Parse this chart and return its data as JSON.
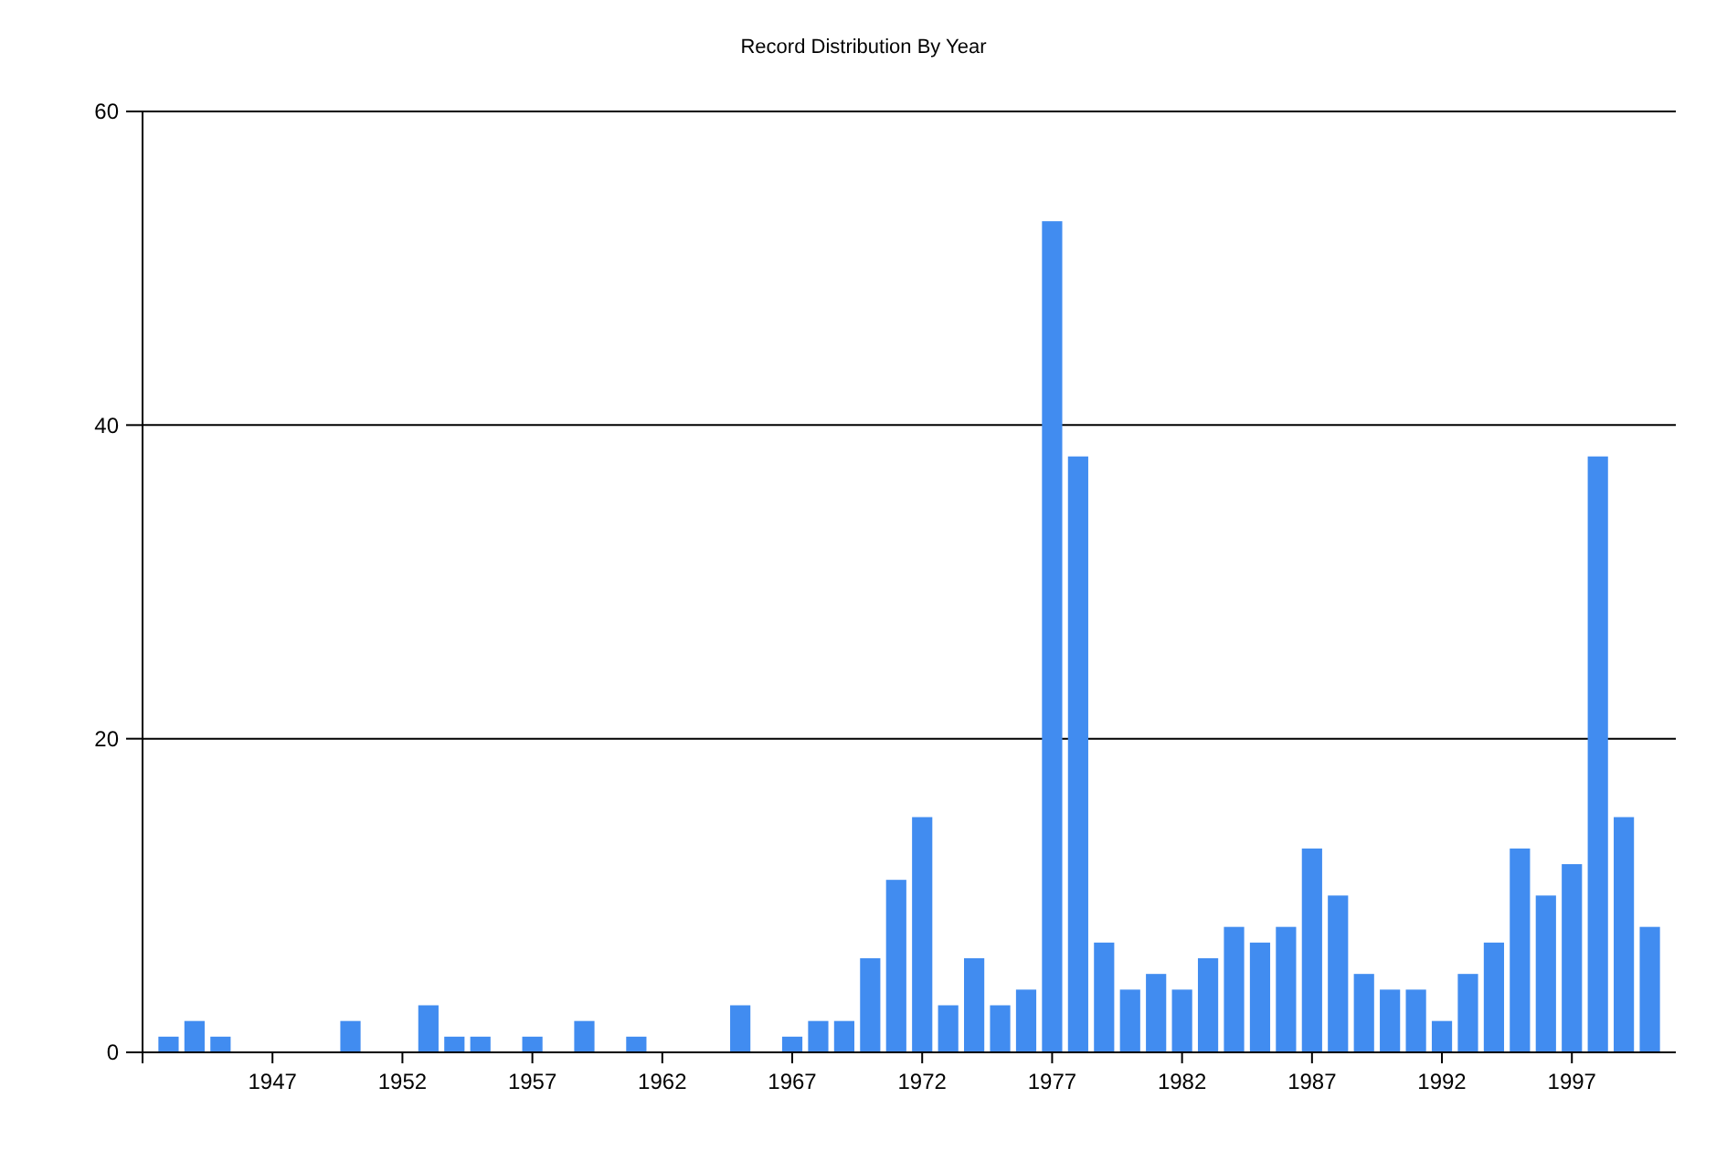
{
  "chart_data": {
    "type": "bar",
    "title": "Record Distribution By Year",
    "x": [
      1943,
      1944,
      1945,
      1950,
      1953,
      1954,
      1955,
      1957,
      1959,
      1961,
      1965,
      1967,
      1968,
      1969,
      1970,
      1971,
      1972,
      1973,
      1974,
      1975,
      1976,
      1977,
      1978,
      1979,
      1980,
      1981,
      1982,
      1983,
      1984,
      1985,
      1986,
      1987,
      1988,
      1989,
      1990,
      1991,
      1992,
      1993,
      1994,
      1995,
      1996,
      1997,
      1998,
      1999,
      2000
    ],
    "values": [
      1,
      2,
      1,
      2,
      3,
      1,
      1,
      1,
      2,
      1,
      3,
      1,
      2,
      2,
      6,
      11,
      15,
      3,
      6,
      3,
      4,
      53,
      38,
      7,
      4,
      5,
      4,
      6,
      8,
      7,
      8,
      13,
      10,
      5,
      4,
      4,
      2,
      5,
      7,
      13,
      10,
      12,
      38,
      15,
      8
    ],
    "color": "#418cf0",
    "xlim": [
      1942,
      2001
    ],
    "xticks": [
      {
        "value": 1942,
        "label": null
      },
      1947,
      1952,
      1957,
      1962,
      1967,
      1972,
      1977,
      1982,
      1987,
      1992,
      1997
    ],
    "ylim": [
      0,
      60
    ],
    "yticks": [
      0,
      20,
      40,
      60
    ],
    "grid": "y"
  }
}
